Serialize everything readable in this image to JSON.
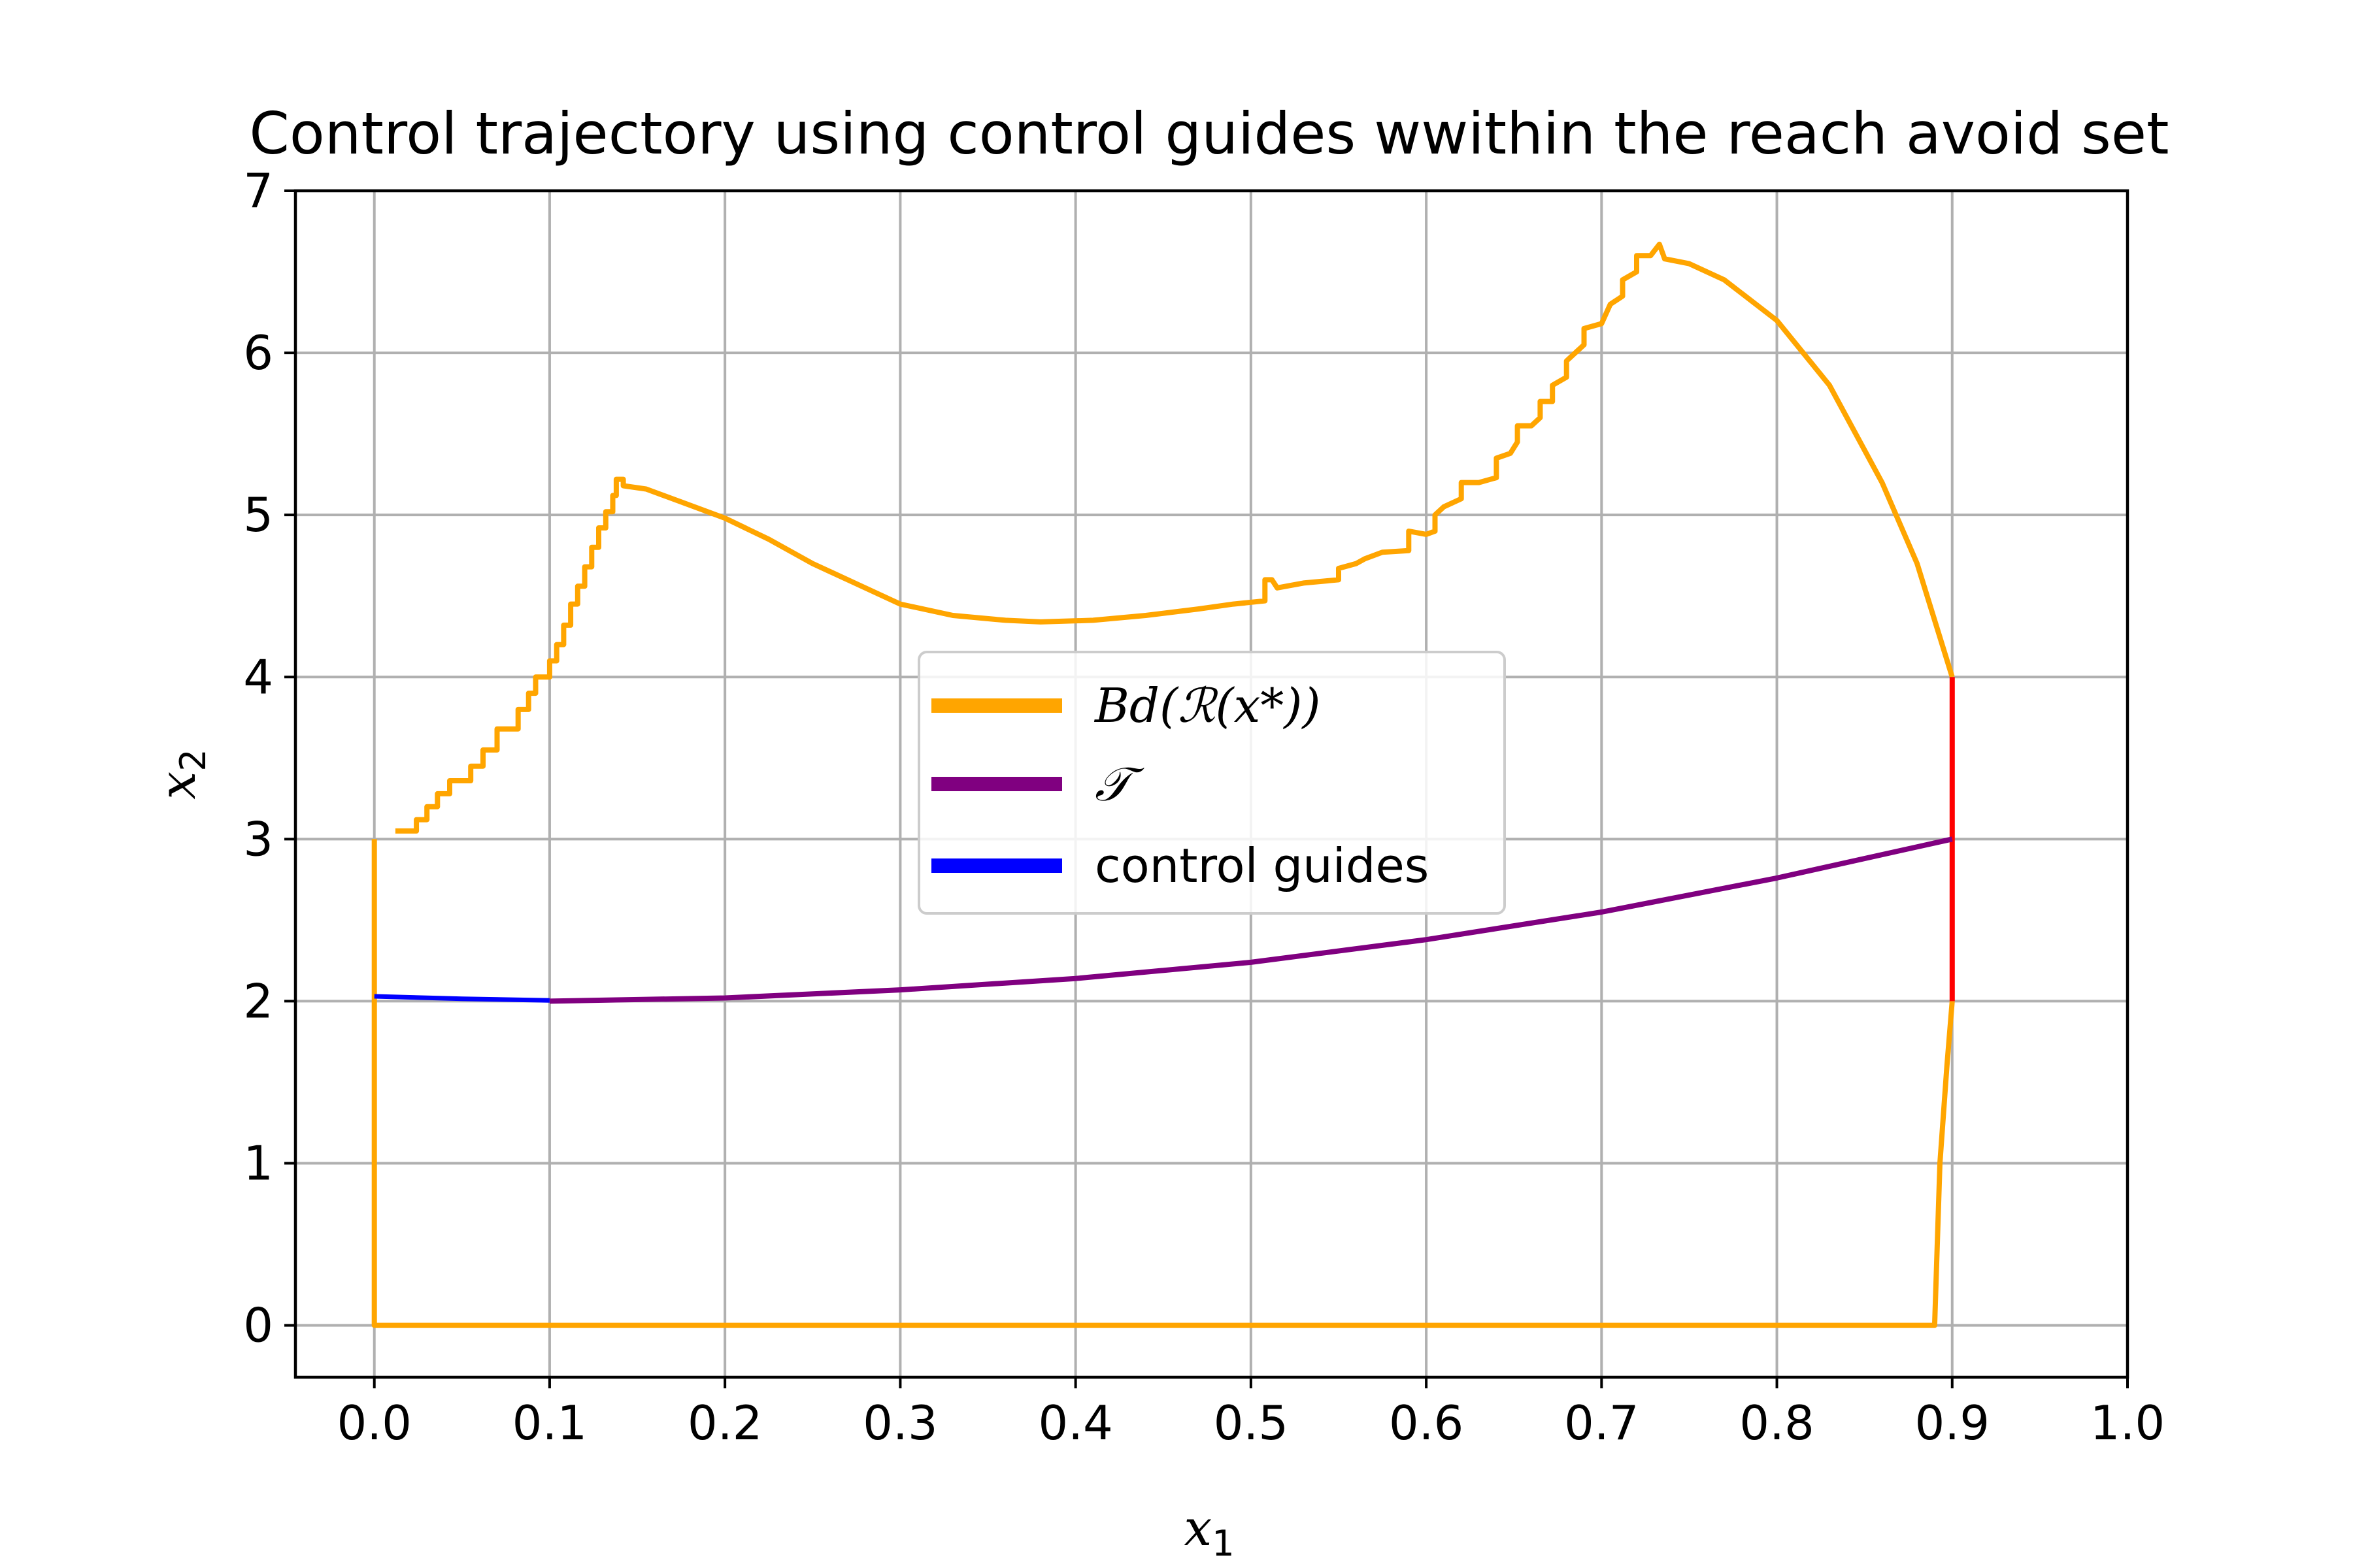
{
  "chart_data": {
    "type": "line",
    "title": "Control trajectory using control guides wwithin the reach avoid set",
    "xlabel": "x",
    "xlabel_sub": "1",
    "ylabel": "x",
    "ylabel_sub": "2",
    "xlim": [
      -0.045,
      1.0
    ],
    "ylim": [
      -0.32,
      7.0
    ],
    "xticks": [
      "0.0",
      "0.1",
      "0.2",
      "0.3",
      "0.4",
      "0.5",
      "0.6",
      "0.7",
      "0.8",
      "0.9",
      "1.0"
    ],
    "yticks": [
      "0",
      "1",
      "2",
      "3",
      "4",
      "5",
      "6",
      "7"
    ],
    "grid": true,
    "legend_position": "center",
    "legend": [
      {
        "label": "Bd(ℛ(x*))",
        "color": "#ffa500"
      },
      {
        "label": "𝒯",
        "color": "#800080"
      },
      {
        "label": "control guides",
        "color": "#0000ff"
      }
    ],
    "series": [
      {
        "name": "Bd(ℛ(x*))",
        "color": "#ffa500",
        "segments": [
          [
            [
              0.0,
              3.0
            ],
            [
              0.0,
              0.0
            ],
            [
              0.89,
              0.0
            ],
            [
              0.893,
              1.0
            ],
            [
              0.897,
              1.6
            ],
            [
              0.9,
              2.0
            ]
          ],
          [
            [
              0.012,
              3.05
            ],
            [
              0.024,
              3.05
            ],
            [
              0.024,
              3.12
            ],
            [
              0.03,
              3.12
            ],
            [
              0.03,
              3.2
            ],
            [
              0.036,
              3.2
            ],
            [
              0.036,
              3.28
            ],
            [
              0.043,
              3.28
            ],
            [
              0.043,
              3.36
            ],
            [
              0.055,
              3.36
            ],
            [
              0.055,
              3.45
            ],
            [
              0.062,
              3.45
            ],
            [
              0.062,
              3.55
            ],
            [
              0.07,
              3.55
            ],
            [
              0.07,
              3.68
            ],
            [
              0.082,
              3.68
            ],
            [
              0.082,
              3.8
            ],
            [
              0.088,
              3.8
            ],
            [
              0.088,
              3.9
            ],
            [
              0.092,
              3.9
            ],
            [
              0.092,
              4.0
            ],
            [
              0.1,
              4.0
            ],
            [
              0.1,
              4.1
            ],
            [
              0.104,
              4.1
            ],
            [
              0.104,
              4.2
            ],
            [
              0.108,
              4.2
            ],
            [
              0.108,
              4.32
            ],
            [
              0.112,
              4.32
            ],
            [
              0.112,
              4.45
            ],
            [
              0.116,
              4.45
            ],
            [
              0.116,
              4.56
            ],
            [
              0.12,
              4.56
            ],
            [
              0.12,
              4.68
            ],
            [
              0.124,
              4.68
            ],
            [
              0.124,
              4.8
            ],
            [
              0.128,
              4.8
            ],
            [
              0.128,
              4.92
            ],
            [
              0.132,
              4.92
            ],
            [
              0.132,
              5.02
            ],
            [
              0.136,
              5.02
            ],
            [
              0.136,
              5.12
            ],
            [
              0.138,
              5.12
            ],
            [
              0.138,
              5.22
            ],
            [
              0.142,
              5.22
            ],
            [
              0.142,
              5.18
            ],
            [
              0.155,
              5.16
            ],
            [
              0.175,
              5.08
            ],
            [
              0.2,
              4.98
            ],
            [
              0.225,
              4.85
            ],
            [
              0.25,
              4.7
            ],
            [
              0.27,
              4.6
            ],
            [
              0.3,
              4.45
            ],
            [
              0.33,
              4.38
            ],
            [
              0.36,
              4.35
            ],
            [
              0.38,
              4.34
            ],
            [
              0.41,
              4.35
            ],
            [
              0.44,
              4.38
            ],
            [
              0.47,
              4.42
            ],
            [
              0.49,
              4.45
            ],
            [
              0.508,
              4.47
            ],
            [
              0.508,
              4.6
            ],
            [
              0.512,
              4.6
            ],
            [
              0.515,
              4.55
            ],
            [
              0.53,
              4.58
            ],
            [
              0.55,
              4.6
            ],
            [
              0.55,
              4.67
            ],
            [
              0.56,
              4.7
            ],
            [
              0.565,
              4.73
            ],
            [
              0.575,
              4.77
            ],
            [
              0.59,
              4.78
            ],
            [
              0.59,
              4.9
            ],
            [
              0.6,
              4.88
            ],
            [
              0.605,
              4.9
            ],
            [
              0.605,
              5.0
            ],
            [
              0.61,
              5.05
            ],
            [
              0.62,
              5.1
            ],
            [
              0.62,
              5.2
            ],
            [
              0.63,
              5.2
            ],
            [
              0.64,
              5.23
            ],
            [
              0.64,
              5.35
            ],
            [
              0.648,
              5.38
            ],
            [
              0.652,
              5.45
            ],
            [
              0.652,
              5.55
            ],
            [
              0.66,
              5.55
            ],
            [
              0.665,
              5.6
            ],
            [
              0.665,
              5.7
            ],
            [
              0.672,
              5.7
            ],
            [
              0.672,
              5.8
            ],
            [
              0.68,
              5.85
            ],
            [
              0.68,
              5.95
            ],
            [
              0.685,
              6.0
            ],
            [
              0.69,
              6.05
            ],
            [
              0.69,
              6.15
            ],
            [
              0.7,
              6.18
            ],
            [
              0.705,
              6.3
            ],
            [
              0.712,
              6.35
            ],
            [
              0.712,
              6.45
            ],
            [
              0.72,
              6.5
            ],
            [
              0.72,
              6.6
            ],
            [
              0.728,
              6.6
            ],
            [
              0.733,
              6.67
            ],
            [
              0.736,
              6.58
            ],
            [
              0.75,
              6.55
            ],
            [
              0.77,
              6.45
            ],
            [
              0.8,
              6.2
            ],
            [
              0.83,
              5.8
            ],
            [
              0.86,
              5.2
            ],
            [
              0.88,
              4.7
            ],
            [
              0.9,
              4.0
            ]
          ]
        ]
      },
      {
        "name": "red boundary segment",
        "color": "#ff0000",
        "segments": [
          [
            [
              0.9,
              2.0
            ],
            [
              0.9,
              4.0
            ]
          ]
        ]
      },
      {
        "name": "𝒯",
        "color": "#800080",
        "segments": [
          [
            [
              0.1,
              2.0
            ],
            [
              0.2,
              2.02
            ],
            [
              0.3,
              2.07
            ],
            [
              0.4,
              2.14
            ],
            [
              0.5,
              2.24
            ],
            [
              0.6,
              2.38
            ],
            [
              0.7,
              2.55
            ],
            [
              0.8,
              2.76
            ],
            [
              0.9,
              3.0
            ]
          ]
        ]
      },
      {
        "name": "control guides",
        "color": "#0000ff",
        "segments": [
          [
            [
              0.0,
              2.03
            ],
            [
              0.05,
              2.015
            ],
            [
              0.1,
              2.005
            ]
          ]
        ]
      }
    ]
  }
}
